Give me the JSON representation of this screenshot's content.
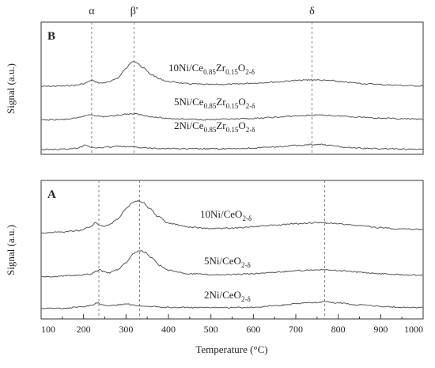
{
  "chart_data": {
    "type": "line",
    "shared_x_axis": {
      "label": "Temperature (°C)",
      "range": [
        100,
        1000
      ],
      "ticks": [
        "100",
        "200",
        "300",
        "400",
        "500",
        "600",
        "700",
        "800",
        "900",
        "1000"
      ]
    },
    "panels": [
      {
        "panel_label": "B",
        "ylabel": "Signal (a.u.)",
        "peak_labels": [
          {
            "text": "α",
            "x": 219
          },
          {
            "text": "β'",
            "x": 319
          },
          {
            "text": "δ",
            "x": 738
          }
        ],
        "series": [
          {
            "name": "10Ni/Ce0.85Zr0.15O2-δ",
            "label_main": "10Ni/Ce",
            "label_parts": [
              [
                "0.85",
                "sub"
              ],
              [
                "Zr",
                "main"
              ],
              [
                "0.15",
                "sub"
              ],
              [
                "O",
                "main"
              ],
              [
                "2-δ",
                "sub"
              ]
            ],
            "points": [
              [
                100,
                4
              ],
              [
                150,
                5
              ],
              [
                180,
                7
              ],
              [
                200,
                11
              ],
              [
                212,
                17
              ],
              [
                219,
                22
              ],
              [
                226,
                17
              ],
              [
                240,
                13
              ],
              [
                260,
                16
              ],
              [
                280,
                27
              ],
              [
                300,
                53
              ],
              [
                312,
                69
              ],
              [
                319,
                73
              ],
              [
                326,
                70
              ],
              [
                340,
                55
              ],
              [
                360,
                36
              ],
              [
                380,
                24
              ],
              [
                400,
                17
              ],
              [
                450,
                11
              ],
              [
                500,
                9
              ],
              [
                550,
                10
              ],
              [
                600,
                13
              ],
              [
                650,
                16
              ],
              [
                700,
                20
              ],
              [
                740,
                22
              ],
              [
                780,
                20
              ],
              [
                820,
                15
              ],
              [
                870,
                11
              ],
              [
                920,
                8
              ],
              [
                970,
                6
              ],
              [
                1000,
                5
              ]
            ]
          },
          {
            "name": "5Ni/Ce0.85Zr0.15O2-δ",
            "label_main": "5Ni/Ce",
            "label_parts": [
              [
                "0.85",
                "sub"
              ],
              [
                "Zr",
                "main"
              ],
              [
                "0.15",
                "sub"
              ],
              [
                "O",
                "main"
              ],
              [
                "2-δ",
                "sub"
              ]
            ],
            "points": [
              [
                100,
                1
              ],
              [
                150,
                2
              ],
              [
                180,
                5
              ],
              [
                200,
                11
              ],
              [
                212,
                15
              ],
              [
                219,
                16
              ],
              [
                228,
                13
              ],
              [
                245,
                10
              ],
              [
                260,
                11
              ],
              [
                280,
                14
              ],
              [
                300,
                17
              ],
              [
                315,
                18
              ],
              [
                325,
                17
              ],
              [
                345,
                13
              ],
              [
                370,
                8
              ],
              [
                400,
                5
              ],
              [
                450,
                3
              ],
              [
                500,
                2
              ],
              [
                550,
                3
              ],
              [
                600,
                5
              ],
              [
                650,
                8
              ],
              [
                700,
                12
              ],
              [
                740,
                14
              ],
              [
                770,
                14
              ],
              [
                800,
                12
              ],
              [
                850,
                9
              ],
              [
                900,
                6
              ],
              [
                950,
                4
              ],
              [
                1000,
                3
              ]
            ]
          },
          {
            "name": "2Ni/Ce0.85Zr0.15O2-δ",
            "label_main": "2Ni/Ce",
            "label_parts": [
              [
                "0.85",
                "sub"
              ],
              [
                "Zr",
                "main"
              ],
              [
                "0.15",
                "sub"
              ],
              [
                "O",
                "main"
              ],
              [
                "2-δ",
                "sub"
              ]
            ],
            "points": [
              [
                100,
                0
              ],
              [
                150,
                1
              ],
              [
                180,
                3
              ],
              [
                195,
                8
              ],
              [
                203,
                14
              ],
              [
                209,
                11
              ],
              [
                220,
                5
              ],
              [
                240,
                5
              ],
              [
                260,
                7
              ],
              [
                280,
                9
              ],
              [
                300,
                8
              ],
              [
                330,
                6
              ],
              [
                360,
                4
              ],
              [
                400,
                3
              ],
              [
                450,
                2
              ],
              [
                500,
                2
              ],
              [
                550,
                2
              ],
              [
                600,
                4
              ],
              [
                650,
                7
              ],
              [
                700,
                11
              ],
              [
                740,
                14
              ],
              [
                760,
                14
              ],
              [
                780,
                11
              ],
              [
                820,
                6
              ],
              [
                870,
                3
              ],
              [
                920,
                2
              ],
              [
                970,
                1
              ],
              [
                1000,
                1
              ]
            ]
          }
        ]
      },
      {
        "panel_label": "A",
        "ylabel": "Signal (a.u.)",
        "peak_labels": [],
        "series": [
          {
            "name": "10Ni/CeO2-δ",
            "label_main": "10Ni/CeO",
            "label_parts": [
              [
                "2-δ",
                "sub"
              ]
            ],
            "points": [
              [
                100,
                3
              ],
              [
                150,
                5
              ],
              [
                190,
                8
              ],
              [
                215,
                15
              ],
              [
                228,
                24
              ],
              [
                236,
                20
              ],
              [
                245,
                17
              ],
              [
                260,
                20
              ],
              [
                280,
                32
              ],
              [
                300,
                54
              ],
              [
                315,
                66
              ],
              [
                328,
                70
              ],
              [
                340,
                67
              ],
              [
                355,
                55
              ],
              [
                375,
                37
              ],
              [
                400,
                23
              ],
              [
                450,
                15
              ],
              [
                500,
                12
              ],
              [
                550,
                13
              ],
              [
                600,
                16
              ],
              [
                650,
                19
              ],
              [
                700,
                22
              ],
              [
                740,
                24
              ],
              [
                770,
                24
              ],
              [
                800,
                22
              ],
              [
                850,
                18
              ],
              [
                900,
                14
              ],
              [
                950,
                11
              ],
              [
                1000,
                10
              ]
            ]
          },
          {
            "name": "5Ni/CeO2-δ",
            "label_main": "5Ni/CeO",
            "label_parts": [
              [
                "2-δ",
                "sub"
              ]
            ],
            "points": [
              [
                100,
                0
              ],
              [
                150,
                2
              ],
              [
                190,
                4
              ],
              [
                215,
                6
              ],
              [
                230,
                12
              ],
              [
                238,
                17
              ],
              [
                245,
                12
              ],
              [
                260,
                9
              ],
              [
                280,
                16
              ],
              [
                300,
                30
              ],
              [
                318,
                50
              ],
              [
                333,
                56
              ],
              [
                345,
                52
              ],
              [
                360,
                40
              ],
              [
                380,
                24
              ],
              [
                400,
                14
              ],
              [
                450,
                7
              ],
              [
                500,
                5
              ],
              [
                550,
                5
              ],
              [
                600,
                7
              ],
              [
                650,
                10
              ],
              [
                700,
                13
              ],
              [
                740,
                15
              ],
              [
                770,
                15
              ],
              [
                800,
                13
              ],
              [
                850,
                10
              ],
              [
                900,
                7
              ],
              [
                950,
                5
              ],
              [
                1000,
                4
              ]
            ]
          },
          {
            "name": "2Ni/CeO2-δ",
            "label_main": "2Ni/CeO",
            "label_parts": [
              [
                "2-δ",
                "sub"
              ]
            ],
            "points": [
              [
                100,
                0
              ],
              [
                150,
                1
              ],
              [
                190,
                3
              ],
              [
                220,
                7
              ],
              [
                233,
                12
              ],
              [
                242,
                9
              ],
              [
                255,
                6
              ],
              [
                275,
                7
              ],
              [
                290,
                9
              ],
              [
                305,
                9
              ],
              [
                320,
                7
              ],
              [
                350,
                5
              ],
              [
                400,
                3
              ],
              [
                450,
                2
              ],
              [
                500,
                2
              ],
              [
                550,
                2
              ],
              [
                600,
                3
              ],
              [
                650,
                6
              ],
              [
                700,
                10
              ],
              [
                740,
                13
              ],
              [
                770,
                14
              ],
              [
                800,
                12
              ],
              [
                850,
                8
              ],
              [
                900,
                5
              ],
              [
                950,
                3
              ],
              [
                1000,
                2
              ]
            ]
          }
        ]
      }
    ],
    "reference_lines": {
      "B": [
        219,
        319,
        738
      ],
      "A": [
        236,
        332,
        768
      ]
    },
    "grid": false,
    "legend": "none (inline curve labels)"
  }
}
